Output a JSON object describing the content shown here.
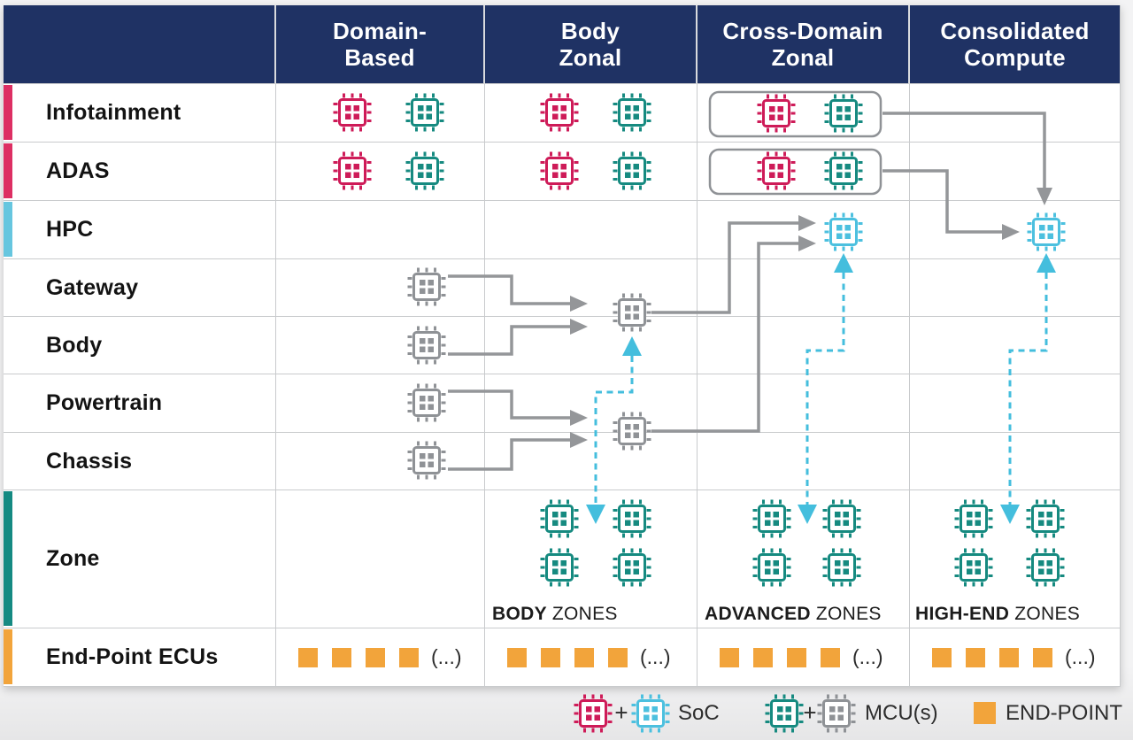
{
  "diagram": {
    "columns": [
      {
        "line1": "Domain-",
        "line2": "Based"
      },
      {
        "line1": "Body",
        "line2": "Zonal"
      },
      {
        "line1": "Cross-Domain",
        "line2": "Zonal"
      },
      {
        "line1": "Consolidated",
        "line2": "Compute"
      }
    ],
    "rows": [
      {
        "label": "Infotainment",
        "bar": "#dd2f63"
      },
      {
        "label": "ADAS",
        "bar": "#dd2f63"
      },
      {
        "label": "HPC",
        "bar": "#66c6df"
      },
      {
        "label": "Gateway",
        "bar": ""
      },
      {
        "label": "Body",
        "bar": ""
      },
      {
        "label": "Powertrain",
        "bar": ""
      },
      {
        "label": "Chassis",
        "bar": ""
      },
      {
        "label": "Zone",
        "bar": "#158a82"
      },
      {
        "label": "End-Point ECUs",
        "bar": "#f2a43b"
      }
    ],
    "zone_labels": [
      {
        "strong": "BODY",
        "rest": "ZONES"
      },
      {
        "strong": "ADVANCED",
        "rest": "ZONES"
      },
      {
        "strong": "HIGH-END",
        "rest": "ZONES"
      }
    ],
    "endpoint_more": "(...)"
  },
  "legend": {
    "plus": "+",
    "soc_label": "SoC",
    "mcu_label": "MCU(s)",
    "endpoint_label": "END-POINT"
  },
  "colors": {
    "header_navy": "#1f3264",
    "soc_red": "#ce1b58",
    "soc_blue": "#4cc0df",
    "mcu_teal": "#168a80",
    "mcu_gray": "#8f9296",
    "endpoint_orange": "#f2a43b",
    "connector_gray": "#949699",
    "connector_cyan": "#44bedd",
    "gridline": "#c9cbcd"
  },
  "icons": {
    "soc_chip": "soc-chip-icon",
    "mcu_chip": "mcu-chip-icon",
    "endpoint_square": "endpoint-square-icon",
    "solid_arrow": "solid-arrow-icon",
    "dashed_arrow": "dashed-arrow-icon"
  }
}
